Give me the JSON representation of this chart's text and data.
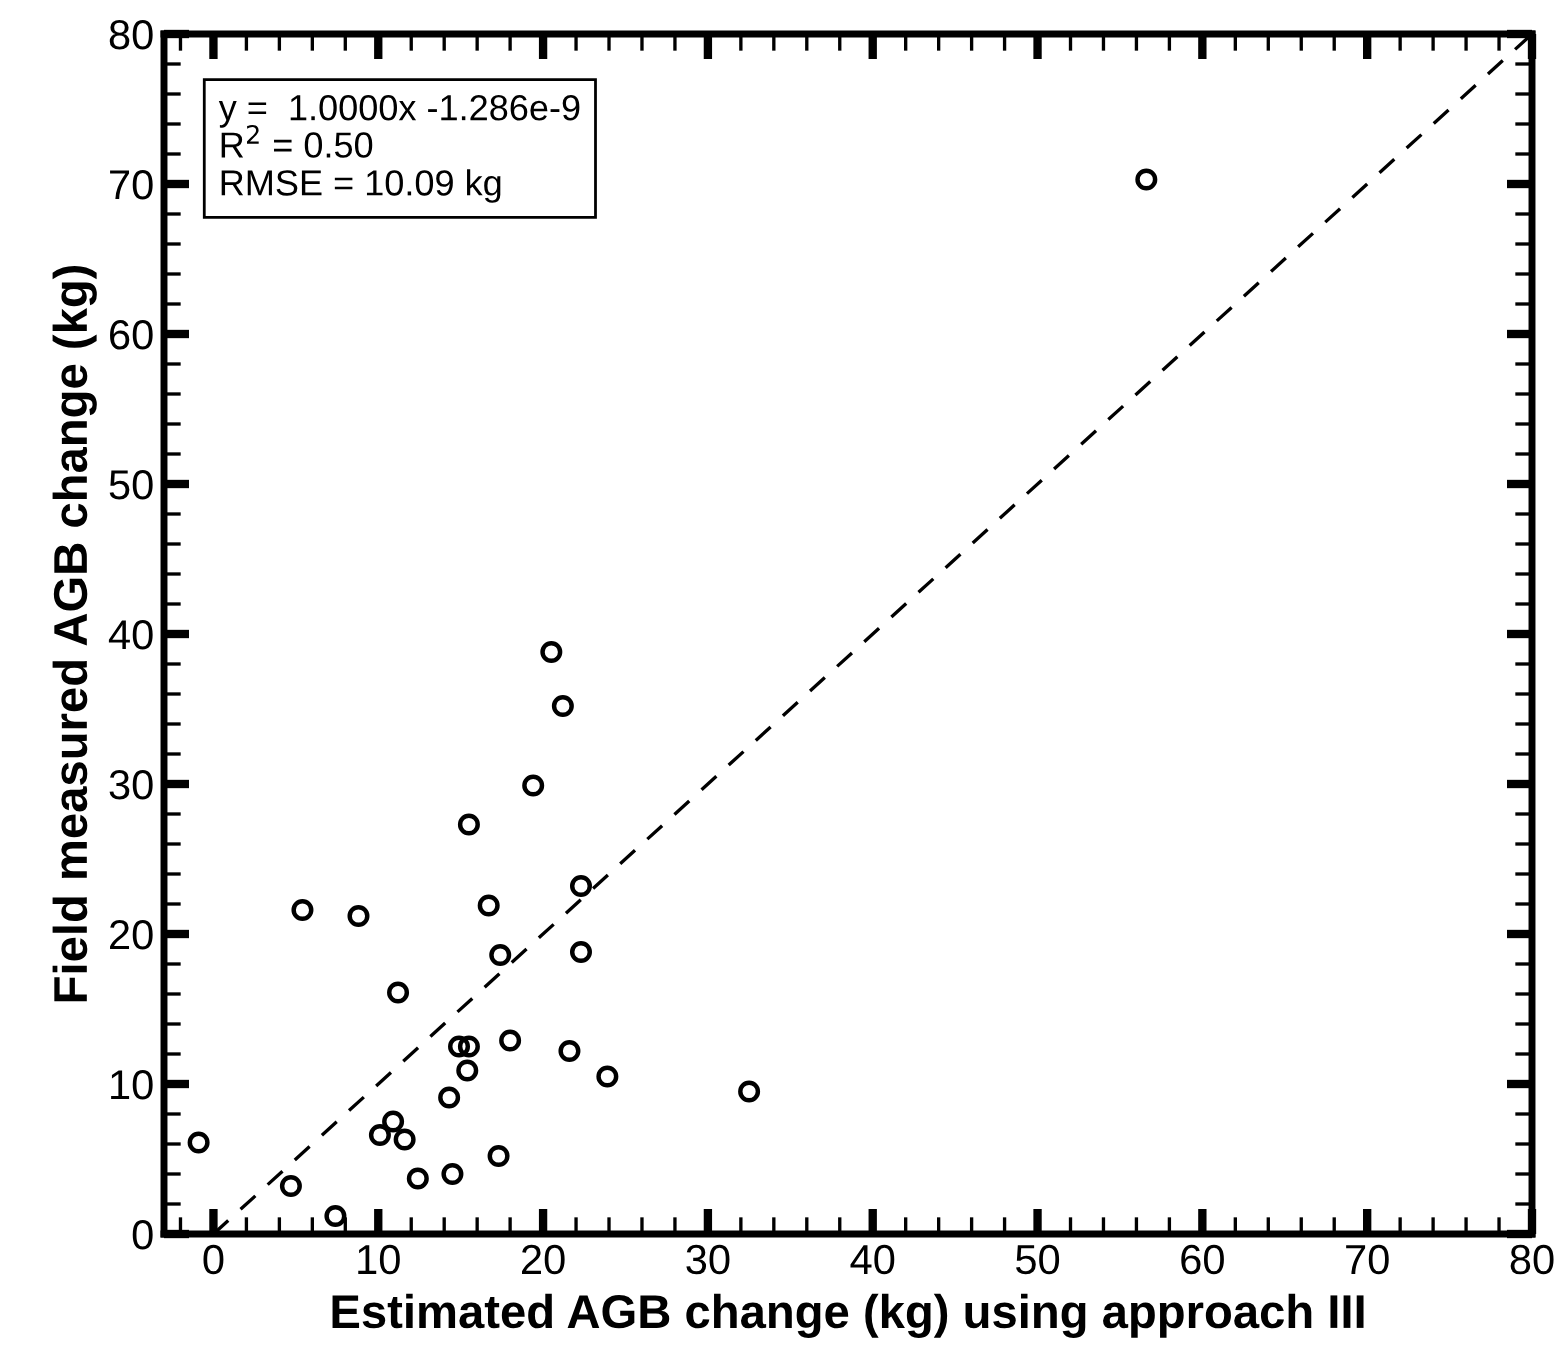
{
  "chart_data": {
    "type": "scatter",
    "xlabel": "Estimated AGB change (kg) using approach III",
    "ylabel": "Field measured AGB change (kg)",
    "annotations": [
      "y =  1.0000x -1.286e-9\nR$^{2}$ = 0.50\nRMSE = 10.09 kg"
    ],
    "xlim": [
      -3,
      80
    ],
    "xticks": [
      0,
      10,
      20,
      30,
      40,
      50,
      60,
      70,
      80
    ],
    "ylim": [
      0,
      80
    ],
    "yticks": [
      0,
      10,
      20,
      30,
      40,
      50,
      60,
      70,
      80
    ],
    "grid": false,
    "legend": false,
    "series": [
      {
        "color": "#000000",
        "marker": "circle",
        "x": [
          20.5,
          21.2,
          19.4,
          15.5,
          22.3,
          5.4,
          8.8,
          16.7,
          17.4,
          22.3,
          11.2,
          14.9,
          15.5,
          18.0,
          21.6,
          15.4,
          23.9,
          14.3,
          10.9,
          10.1,
          11.6,
          -0.9,
          17.3,
          14.5,
          12.4,
          4.7,
          7.4,
          32.5,
          56.6
        ],
        "values": [
          38.8,
          35.2,
          29.9,
          27.3,
          23.2,
          21.6,
          21.2,
          21.9,
          18.6,
          18.8,
          16.1,
          12.5,
          12.5,
          12.9,
          12.2,
          10.9,
          10.5,
          9.1,
          7.5,
          6.6,
          6.3,
          6.1,
          5.2,
          4.0,
          3.7,
          3.2,
          1.2,
          9.5,
          70.3
        ]
      },
      {
        "type": "line",
        "color": "#000000",
        "line_style": "dashed",
        "marker": "none",
        "x": [
          0,
          80
        ],
        "values": [
          0,
          80
        ]
      }
    ]
  }
}
